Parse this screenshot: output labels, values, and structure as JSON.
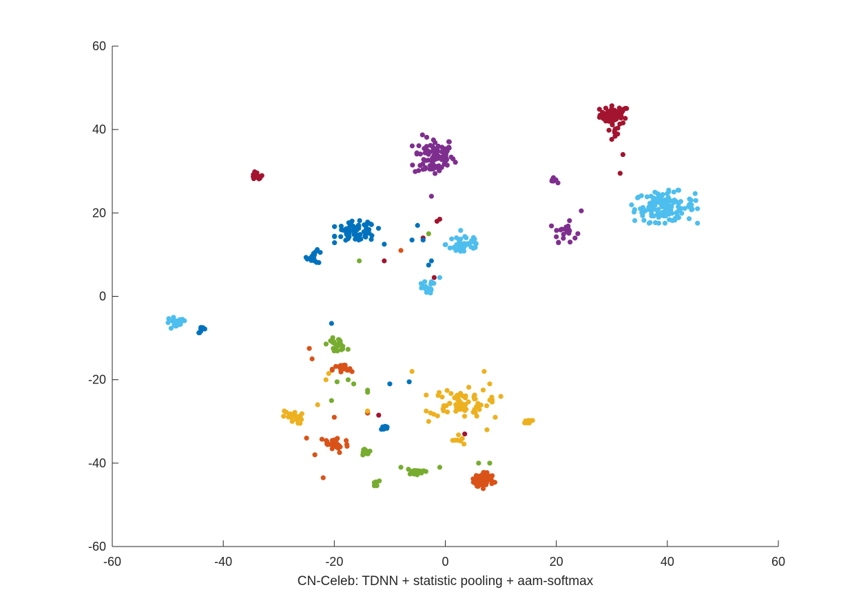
{
  "chart_data": {
    "type": "scatter",
    "title": "",
    "xlabel": "CN-Celeb: TDNN + statistic pooling + aam-softmax",
    "ylabel": "",
    "xlim": [
      -60,
      60
    ],
    "ylim": [
      -60,
      60
    ],
    "xticks": [
      -60,
      -40,
      -20,
      0,
      20,
      40,
      60
    ],
    "yticks": [
      -60,
      -40,
      -20,
      0,
      20,
      40,
      60
    ],
    "xtick_labels": [
      "-60",
      "-40",
      "-20",
      "0",
      "20",
      "40",
      "60"
    ],
    "ytick_labels": [
      "-60",
      "-40",
      "-20",
      "0",
      "20",
      "40",
      "60"
    ],
    "grid": false,
    "legend": "none",
    "series": [
      {
        "color": "#A2142F",
        "clusters": [
          {
            "center": [
              30.5,
              43.5
            ],
            "spread": [
              2.2,
              1.8
            ],
            "count": 55
          },
          {
            "center": [
              30.0,
              39.0
            ],
            "spread": [
              1.2,
              1.5
            ],
            "count": 8
          },
          {
            "center": [
              -34.0,
              28.8
            ],
            "spread": [
              0.9,
              0.8
            ],
            "count": 16
          }
        ],
        "points": [
          [
            32,
            34
          ],
          [
            31.5,
            29.5
          ],
          [
            -1,
            18.5
          ],
          [
            -1.5,
            18
          ],
          [
            -4,
            14
          ],
          [
            -2,
            4.5
          ],
          [
            -11,
            8.5
          ],
          [
            -14,
            -28
          ],
          [
            -12,
            -28.5
          ],
          [
            3.5,
            -33
          ]
        ]
      },
      {
        "color": "#7E2F8E",
        "clusters": [
          {
            "center": [
              -2.0,
              33.5
            ],
            "spread": [
              3.0,
              4.0
            ],
            "count": 95
          },
          {
            "center": [
              21.5,
              15.5
            ],
            "spread": [
              1.8,
              2.0
            ],
            "count": 22
          },
          {
            "center": [
              19.5,
              27.8
            ],
            "spread": [
              0.6,
              0.5
            ],
            "count": 8
          }
        ],
        "points": [
          [
            -2.5,
            24
          ],
          [
            24.5,
            20.5
          ]
        ]
      },
      {
        "color": "#4DBEEE",
        "clusters": [
          {
            "center": [
              39.5,
              21.5
            ],
            "spread": [
              4.5,
              3.0
            ],
            "count": 130
          },
          {
            "center": [
              3.5,
              12.5
            ],
            "spread": [
              2.8,
              2.5
            ],
            "count": 40
          },
          {
            "center": [
              -3.5,
              2.0
            ],
            "spread": [
              1.5,
              1.2
            ],
            "count": 16
          },
          {
            "center": [
              -48.5,
              -6.5
            ],
            "spread": [
              1.6,
              1.3
            ],
            "count": 20
          }
        ],
        "points": [
          [
            -1,
            4.5
          ],
          [
            -2.5,
            3.5
          ]
        ]
      },
      {
        "color": "#0072BD",
        "clusters": [
          {
            "center": [
              -16.0,
              15.5
            ],
            "spread": [
              3.0,
              2.0
            ],
            "count": 70
          },
          {
            "center": [
              -23.5,
              9.5
            ],
            "spread": [
              1.2,
              1.3
            ],
            "count": 16
          },
          {
            "center": [
              -43.8,
              -8.0
            ],
            "spread": [
              0.6,
              0.6
            ],
            "count": 10
          },
          {
            "center": [
              -11.0,
              -31.5
            ],
            "spread": [
              0.6,
              0.5
            ],
            "count": 10
          }
        ],
        "points": [
          [
            -5,
            17
          ],
          [
            -4,
            13.5
          ],
          [
            -3,
            7.5
          ],
          [
            -2.5,
            8.5
          ],
          [
            -10,
            -21
          ],
          [
            -6.5,
            -20.5
          ],
          [
            -20.5,
            -6.5
          ],
          [
            -11,
            12.5
          ],
          [
            -6,
            13.5
          ]
        ]
      },
      {
        "color": "#77AC30",
        "clusters": [
          {
            "center": [
              -19.5,
              -11.5
            ],
            "spread": [
              1.5,
              1.2
            ],
            "count": 22
          },
          {
            "center": [
              -14.5,
              -37.5
            ],
            "spread": [
              0.7,
              0.8
            ],
            "count": 16
          },
          {
            "center": [
              -5.5,
              -42.0
            ],
            "spread": [
              1.2,
              0.6
            ],
            "count": 16
          },
          {
            "center": [
              -12.5,
              -45.0
            ],
            "spread": [
              0.5,
              0.6
            ],
            "count": 8
          }
        ],
        "points": [
          [
            -15.5,
            8.5
          ],
          [
            -3,
            15
          ],
          [
            -19.5,
            -20.5
          ],
          [
            -17.5,
            -20
          ],
          [
            -16.5,
            -21
          ],
          [
            -14,
            -22.5
          ],
          [
            -20.5,
            -25
          ],
          [
            -14,
            -23
          ],
          [
            -8,
            -41
          ],
          [
            -1,
            -41
          ],
          [
            -3.5,
            -42
          ],
          [
            6,
            -40
          ],
          [
            8,
            -40
          ]
        ]
      },
      {
        "color": "#D95319",
        "clusters": [
          {
            "center": [
              -18.5,
              -17.5
            ],
            "spread": [
              1.5,
              1.0
            ],
            "count": 22
          },
          {
            "center": [
              -20.0,
              -35.5
            ],
            "spread": [
              2.2,
              1.8
            ],
            "count": 30
          },
          {
            "center": [
              7.0,
              -44.0
            ],
            "spread": [
              1.5,
              1.6
            ],
            "count": 70
          }
        ],
        "points": [
          [
            -8,
            11
          ],
          [
            -24.5,
            -12.5
          ],
          [
            -24,
            -15
          ],
          [
            -20,
            -29
          ],
          [
            -22,
            -43.5
          ],
          [
            -23.5,
            -38
          ],
          [
            -14,
            -28
          ],
          [
            -25,
            -34
          ]
        ]
      },
      {
        "color": "#EDB120",
        "clusters": [
          {
            "center": [
              2.5,
              -25.5
            ],
            "spread": [
              4.5,
              2.8
            ],
            "count": 70
          },
          {
            "center": [
              -27.5,
              -29.0
            ],
            "spread": [
              1.5,
              1.3
            ],
            "count": 22
          },
          {
            "center": [
              14.8,
              -30.0
            ],
            "spread": [
              0.7,
              0.4
            ],
            "count": 10
          },
          {
            "center": [
              2.5,
              -34.5
            ],
            "spread": [
              1.0,
              1.2
            ],
            "count": 8
          }
        ],
        "points": [
          [
            -21,
            -18.5
          ],
          [
            -21.5,
            -20
          ],
          [
            -23,
            -26
          ],
          [
            -14,
            -27.5
          ],
          [
            -6,
            -18
          ],
          [
            8,
            -21
          ],
          [
            7,
            -18
          ],
          [
            10,
            -24
          ],
          [
            9,
            -29
          ],
          [
            -3,
            -30
          ],
          [
            7.5,
            -32
          ]
        ]
      }
    ]
  }
}
